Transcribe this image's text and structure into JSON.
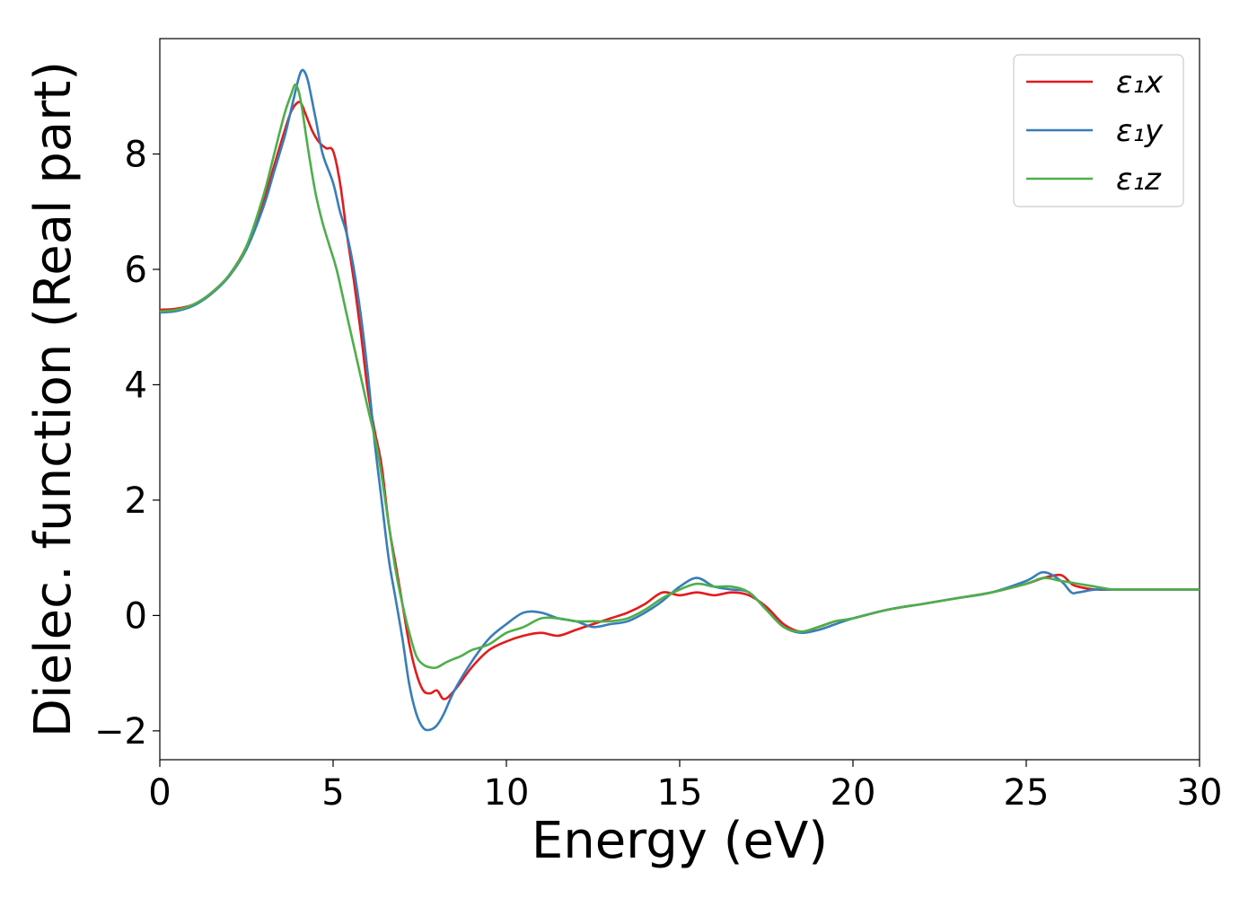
{
  "chart_data": {
    "type": "line",
    "title": "",
    "xlabel": "Energy (eV)",
    "ylabel": "Dielec. function (Real part)",
    "xlim": [
      0,
      30
    ],
    "ylim": [
      -2.5,
      10
    ],
    "xticks": [
      0,
      5,
      10,
      15,
      20,
      25,
      30
    ],
    "xtick_labels": [
      "0",
      "5",
      "10",
      "15",
      "20",
      "25",
      "30"
    ],
    "yticks": [
      -2,
      0,
      2,
      4,
      6,
      8
    ],
    "ytick_labels": [
      "−2",
      "0",
      "2",
      "4",
      "6",
      "8"
    ],
    "grid": false,
    "legend_position": "top-right",
    "series": [
      {
        "name": "ε₁x",
        "color": "#e41a1c",
        "x": [
          0,
          0.5,
          1,
          1.5,
          2,
          2.5,
          3,
          3.3,
          3.6,
          3.8,
          4,
          4.1,
          4.2,
          4.4,
          4.6,
          4.8,
          5,
          5.2,
          5.4,
          5.6,
          5.8,
          6,
          6.2,
          6.4,
          6.6,
          6.8,
          7,
          7.2,
          7.4,
          7.6,
          7.8,
          8,
          8.2,
          8.5,
          9,
          9.5,
          10,
          10.5,
          11,
          11.5,
          12,
          12.5,
          13,
          13.5,
          14,
          14.5,
          15,
          15.5,
          16,
          16.5,
          17,
          17.5,
          18,
          18.5,
          19,
          19.5,
          20,
          21,
          22,
          23,
          24,
          25,
          25.5,
          26,
          26.3,
          26.5,
          27,
          27.5,
          28,
          29,
          30
        ],
        "y": [
          5.3,
          5.32,
          5.4,
          5.6,
          5.9,
          6.4,
          7.2,
          7.8,
          8.4,
          8.75,
          8.9,
          8.85,
          8.7,
          8.4,
          8.2,
          8.1,
          8.05,
          7.5,
          6.6,
          5.8,
          4.9,
          3.9,
          3.2,
          2.6,
          1.6,
          0.9,
          0.2,
          -0.5,
          -1.0,
          -1.3,
          -1.35,
          -1.3,
          -1.45,
          -1.3,
          -0.9,
          -0.6,
          -0.45,
          -0.35,
          -0.3,
          -0.35,
          -0.25,
          -0.15,
          -0.05,
          0.05,
          0.2,
          0.4,
          0.35,
          0.4,
          0.35,
          0.4,
          0.35,
          0.15,
          -0.15,
          -0.28,
          -0.2,
          -0.1,
          -0.05,
          0.1,
          0.2,
          0.3,
          0.4,
          0.55,
          0.65,
          0.7,
          0.55,
          0.5,
          0.45,
          0.45,
          0.45,
          0.45,
          0.45
        ]
      },
      {
        "name": "ε₁y",
        "color": "#377eb8",
        "x": [
          0,
          0.5,
          1,
          1.5,
          2,
          2.5,
          3,
          3.3,
          3.6,
          3.8,
          4,
          4.1,
          4.2,
          4.3,
          4.5,
          4.7,
          5,
          5.2,
          5.4,
          5.6,
          5.8,
          6,
          6.2,
          6.4,
          6.6,
          6.8,
          7,
          7.2,
          7.4,
          7.6,
          7.8,
          8,
          8.2,
          8.5,
          9,
          9.5,
          10,
          10.5,
          11,
          11.5,
          12,
          12.5,
          13,
          13.5,
          14,
          14.5,
          15,
          15.5,
          16,
          16.5,
          17,
          17.5,
          18,
          18.5,
          19,
          19.5,
          20,
          21,
          22,
          23,
          24,
          25,
          25.5,
          26,
          26.3,
          26.5,
          27,
          27.5,
          28,
          29,
          30
        ],
        "y": [
          5.25,
          5.28,
          5.38,
          5.58,
          5.88,
          6.35,
          7.1,
          7.7,
          8.3,
          8.8,
          9.3,
          9.45,
          9.4,
          9.2,
          8.6,
          8.0,
          7.5,
          7.0,
          6.6,
          6.0,
          5.2,
          4.2,
          3.0,
          2.0,
          1.0,
          0.3,
          -0.4,
          -1.2,
          -1.7,
          -1.95,
          -1.98,
          -1.9,
          -1.7,
          -1.3,
          -0.8,
          -0.4,
          -0.15,
          0.05,
          0.05,
          -0.05,
          -0.1,
          -0.2,
          -0.15,
          -0.1,
          0.05,
          0.25,
          0.5,
          0.65,
          0.5,
          0.45,
          0.4,
          0.1,
          -0.2,
          -0.3,
          -0.25,
          -0.15,
          -0.05,
          0.1,
          0.2,
          0.3,
          0.4,
          0.6,
          0.75,
          0.6,
          0.4,
          0.4,
          0.45,
          0.45,
          0.45,
          0.45,
          0.45
        ]
      },
      {
        "name": "ε₁z",
        "color": "#4daf4a",
        "x": [
          0,
          0.5,
          1,
          1.5,
          2,
          2.5,
          3,
          3.3,
          3.6,
          3.8,
          3.9,
          4,
          4.1,
          4.3,
          4.5,
          4.7,
          4.9,
          5.1,
          5.4,
          5.7,
          6,
          6.3,
          6.6,
          6.8,
          7,
          7.2,
          7.4,
          7.6,
          7.8,
          8,
          8.3,
          8.7,
          9,
          9.5,
          10,
          10.5,
          11,
          11.5,
          12,
          12.5,
          13,
          13.5,
          14,
          14.5,
          15,
          15.5,
          16,
          16.5,
          17,
          17.5,
          18,
          18.5,
          19,
          19.5,
          20,
          21,
          22,
          23,
          24,
          25,
          25.5,
          26,
          26.5,
          27,
          27.5,
          28,
          29,
          30
        ],
        "y": [
          5.27,
          5.3,
          5.4,
          5.6,
          5.9,
          6.4,
          7.3,
          8.0,
          8.7,
          9.05,
          9.2,
          9.1,
          8.8,
          8.0,
          7.3,
          6.8,
          6.4,
          6.0,
          5.2,
          4.4,
          3.6,
          2.8,
          1.6,
          0.8,
          0.2,
          -0.3,
          -0.7,
          -0.85,
          -0.9,
          -0.9,
          -0.8,
          -0.7,
          -0.6,
          -0.5,
          -0.3,
          -0.2,
          -0.05,
          -0.05,
          -0.1,
          -0.1,
          -0.1,
          -0.05,
          0.1,
          0.3,
          0.45,
          0.55,
          0.5,
          0.5,
          0.4,
          0.1,
          -0.2,
          -0.28,
          -0.2,
          -0.1,
          -0.05,
          0.1,
          0.2,
          0.3,
          0.4,
          0.55,
          0.65,
          0.6,
          0.55,
          0.5,
          0.45,
          0.45,
          0.45,
          0.45
        ]
      }
    ]
  }
}
